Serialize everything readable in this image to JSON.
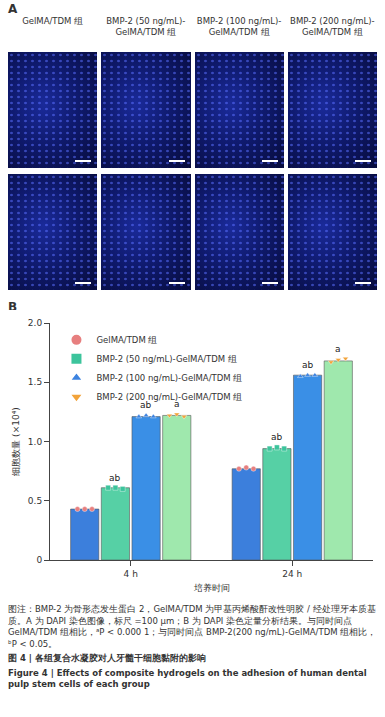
{
  "panel_a": {
    "label": "A",
    "rows": 2,
    "columns": [
      "GelMA/TDM 组",
      "BMP-2 (50 ng/mL)-GelMA/TDM 组",
      "BMP-2 (100 ng/mL)-GelMA/TDM 组",
      "BMP-2 (200 ng/mL)-GelMA/TDM 组"
    ]
  },
  "chart_data": {
    "type": "bar",
    "panel_label": "B",
    "categories": [
      "4 h",
      "24 h"
    ],
    "x_label": "培养时间",
    "y_label": "细胞数量 (×10⁴)",
    "ylim": [
      0,
      2
    ],
    "yticks": [
      0,
      0.5,
      {
        "value": 1,
        "label": "1.0"
      },
      1.5,
      {
        "value": 2,
        "label": "2.0"
      }
    ],
    "grid": false,
    "legend": "upper left",
    "series": [
      {
        "name": "GelMA/TDM 组",
        "color": "#3c7fdc",
        "marker": "circle",
        "values": [
          0.43,
          0.77
        ],
        "points": [
          [
            0.43,
            0.43,
            0.43
          ],
          [
            0.77,
            0.78,
            0.77
          ]
        ]
      },
      {
        "name": "BMP-2 (50 ng/mL)-GelMA/TDM 组",
        "color": "#56d0a5",
        "marker": "square",
        "values": [
          0.61,
          0.94
        ],
        "points": [
          [
            0.61,
            0.61,
            0.6
          ],
          [
            0.94,
            0.95,
            0.94
          ]
        ],
        "significance": [
          "ab",
          "ab"
        ]
      },
      {
        "name": "BMP-2 (100 ng/mL)-GelMA/TDM 组",
        "color": "#3a8fe6",
        "marker": "triangle-up",
        "values": [
          1.21,
          1.56
        ],
        "points": [
          [
            1.21,
            1.22,
            1.21
          ],
          [
            1.55,
            1.56,
            1.56
          ]
        ],
        "significance": [
          "ab",
          "ab"
        ]
      },
      {
        "name": "BMP-2 (200 ng/mL)-GelMA/TDM 组",
        "color": "#9fe8ad",
        "marker": "triangle-down",
        "values": [
          1.22,
          1.68
        ],
        "points": [
          [
            1.22,
            1.23,
            1.21
          ],
          [
            1.67,
            1.69,
            1.7
          ]
        ],
        "significance": [
          "a",
          "a"
        ]
      }
    ]
  },
  "caption": {
    "note": "图注：BMP-2 为骨形态发生蛋白 2，GelMA/TDM 为甲基丙烯酸酐改性明胶 / 经处理牙本质基质。A 为 DAPI 染色图像，标尺 =100 μm；B 为 DAPI 染色定量分析结果。与同时间点 GelMA/TDM 组相比，ᵃP < 0.000 1；与同时间点 BMP-2(200 ng/mL)-GelMA/TDM 组相比，ᵇP < 0.05。",
    "title_cn": "图 4 | 各组复合水凝胶对人牙髓干细胞黏附的影响",
    "title_en": "Figure 4 | Effects of composite hydrogels on the adhesion of human dental pulp stem cells of each group"
  }
}
